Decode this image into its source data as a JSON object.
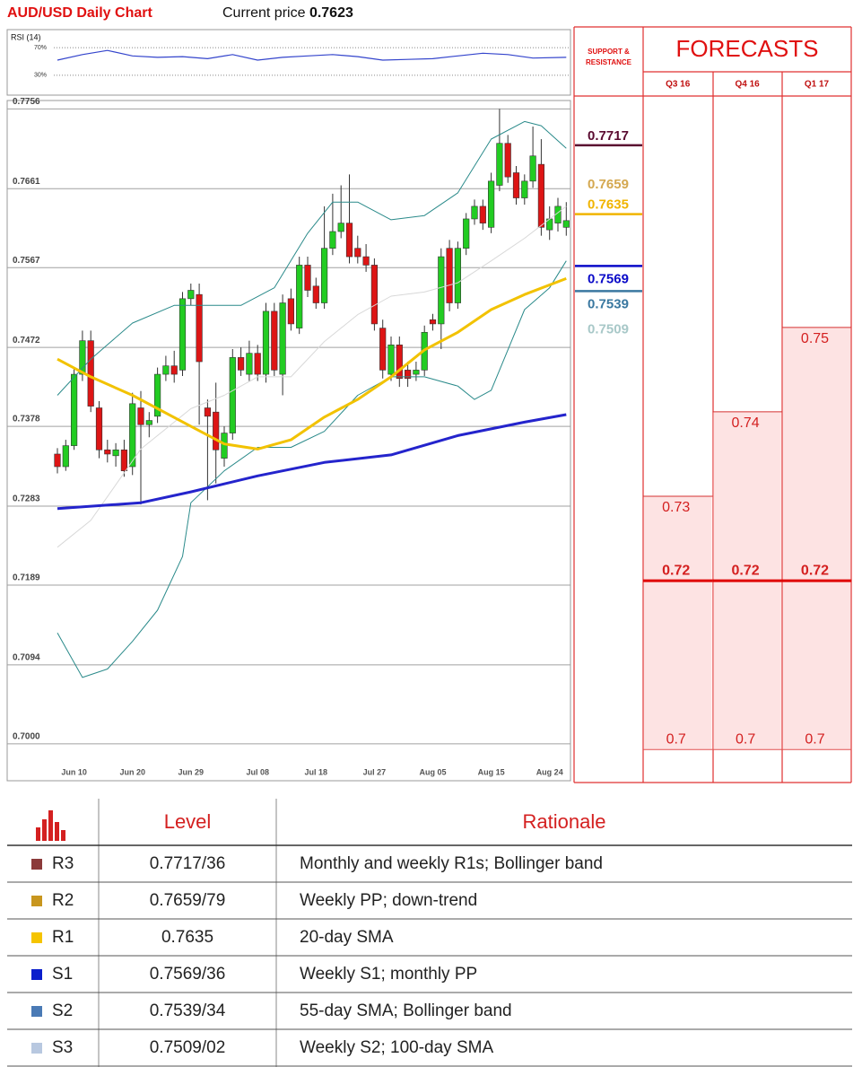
{
  "header": {
    "title": "AUD/USD Daily Chart",
    "price_label": "Current price",
    "price": 0.7623
  },
  "chart_data": [
    {
      "type": "candlestick",
      "categories": [
        null,
        null,
        "Jun 10",
        null,
        null,
        null,
        null,
        null,
        null,
        "Jun 20",
        null,
        null,
        null,
        null,
        null,
        null,
        "Jun 29",
        null,
        null,
        null,
        null,
        null,
        null,
        null,
        "Jul 08",
        null,
        null,
        null,
        null,
        null,
        null,
        "Jul 18",
        null,
        null,
        null,
        null,
        null,
        null,
        "Jul 27",
        null,
        null,
        null,
        null,
        null,
        null,
        "Aug 05",
        null,
        null,
        null,
        null,
        null,
        null,
        "Aug 15",
        null,
        null,
        null,
        null,
        null,
        null,
        "Aug 24",
        null,
        null
      ],
      "open": [
        0.7345,
        0.733,
        0.7355,
        0.744,
        0.748,
        0.74,
        0.735,
        0.7343,
        0.735,
        0.733,
        0.74,
        0.738,
        0.739,
        0.744,
        0.745,
        0.7445,
        0.753,
        0.7535,
        0.74,
        0.7395,
        0.734,
        0.737,
        0.746,
        0.744,
        0.7465,
        0.744,
        0.7515,
        0.744,
        0.753,
        0.7495,
        0.757,
        0.7545,
        0.7525,
        0.759,
        0.761,
        0.762,
        0.759,
        0.758,
        0.757,
        0.7495,
        0.744,
        0.7475,
        0.7445,
        0.744,
        0.7445,
        0.7505,
        0.75,
        0.759,
        0.7525,
        0.759,
        0.7625,
        0.764,
        0.7615,
        0.7665,
        0.7715,
        0.768,
        0.765,
        0.767,
        0.769,
        0.7612,
        0.762,
        0.7615
      ],
      "high": [
        0.7352,
        0.7362,
        0.7448,
        0.7492,
        0.7492,
        0.7408,
        0.7362,
        0.7358,
        0.7362,
        0.7418,
        0.742,
        0.7395,
        0.7448,
        0.7462,
        0.7468,
        0.7538,
        0.7548,
        0.7548,
        0.741,
        0.743,
        0.7378,
        0.747,
        0.7472,
        0.748,
        0.7475,
        0.7525,
        0.7525,
        0.7535,
        0.7542,
        0.758,
        0.758,
        0.7555,
        0.764,
        0.7655,
        0.7665,
        0.7678,
        0.7605,
        0.7595,
        0.7578,
        0.7505,
        0.7485,
        0.7485,
        0.7455,
        0.7455,
        0.7498,
        0.7512,
        0.759,
        0.76,
        0.7598,
        0.7632,
        0.7648,
        0.7648,
        0.768,
        0.7756,
        0.7725,
        0.7688,
        0.7678,
        0.7735,
        0.772,
        0.764,
        0.765,
        0.7645
      ],
      "low": [
        0.7322,
        0.7325,
        0.735,
        0.7432,
        0.7395,
        0.734,
        0.7335,
        0.733,
        0.7318,
        0.732,
        0.7285,
        0.7365,
        0.7382,
        0.7432,
        0.743,
        0.7438,
        0.7522,
        0.738,
        0.729,
        0.731,
        0.733,
        0.7362,
        0.7438,
        0.7432,
        0.7432,
        0.743,
        0.7438,
        0.7415,
        0.7492,
        0.7488,
        0.7532,
        0.7518,
        0.7518,
        0.7582,
        0.7602,
        0.7572,
        0.7572,
        0.7562,
        0.7492,
        0.7435,
        0.7432,
        0.7425,
        0.7425,
        0.7432,
        0.7438,
        0.7492,
        0.747,
        0.7515,
        0.7518,
        0.7582,
        0.7618,
        0.7612,
        0.7608,
        0.7658,
        0.7668,
        0.7642,
        0.7642,
        0.7662,
        0.7605,
        0.76,
        0.761,
        0.7605
      ],
      "close": [
        0.733,
        0.7355,
        0.744,
        0.748,
        0.7402,
        0.735,
        0.7345,
        0.735,
        0.7325,
        0.7405,
        0.738,
        0.7385,
        0.744,
        0.745,
        0.744,
        0.753,
        0.754,
        0.7455,
        0.739,
        0.735,
        0.737,
        0.746,
        0.7445,
        0.7465,
        0.744,
        0.7515,
        0.7445,
        0.7525,
        0.75,
        0.757,
        0.754,
        0.7525,
        0.759,
        0.761,
        0.762,
        0.758,
        0.758,
        0.757,
        0.75,
        0.7445,
        0.7475,
        0.7435,
        0.7435,
        0.7445,
        0.749,
        0.75,
        0.758,
        0.7525,
        0.759,
        0.7625,
        0.764,
        0.762,
        0.767,
        0.7715,
        0.7675,
        0.765,
        0.767,
        0.77,
        0.7615,
        0.7625,
        0.764,
        0.7623
      ],
      "up_color": "#22cc22",
      "down_color": "#dd1515",
      "lines": [
        {
          "color": "#d8d8d8",
          "width": 1,
          "x": [
            0,
            4,
            10,
            16,
            20,
            24,
            28,
            32,
            36,
            40,
            44,
            48,
            52,
            56,
            61
          ],
          "values": [
            0.7234,
            0.7266,
            0.7351,
            0.7399,
            0.7415,
            0.7437,
            0.7437,
            0.7479,
            0.7511,
            0.7533,
            0.7538,
            0.7549,
            0.7575,
            0.7602,
            0.764
          ]
        },
        {
          "color": "#2a8a8a",
          "width": 1,
          "x": [
            0,
            4,
            9,
            14,
            18,
            22,
            26,
            30,
            33,
            36,
            40,
            44,
            48,
            52,
            56,
            58,
            61
          ],
          "values": [
            0.7415,
            0.7458,
            0.7501,
            0.7522,
            0.7522,
            0.7522,
            0.7543,
            0.7608,
            0.7645,
            0.7645,
            0.7624,
            0.7629,
            0.7656,
            0.772,
            0.7741,
            0.7736,
            0.7709
          ]
        },
        {
          "color": "#2a8a8a",
          "width": 1,
          "x": [
            0,
            3,
            6,
            9,
            12,
            15,
            16,
            20,
            24,
            28,
            32,
            36,
            40,
            44,
            48,
            50,
            52,
            56,
            59,
            61
          ],
          "values": [
            0.7132,
            0.7079,
            0.7089,
            0.7122,
            0.7159,
            0.7223,
            0.7287,
            0.7325,
            0.7353,
            0.7353,
            0.7372,
            0.7415,
            0.7437,
            0.7437,
            0.7426,
            0.741,
            0.7421,
            0.7517,
            0.7543,
            0.7575
          ]
        },
        {
          "color": "#2424cc",
          "width": 3,
          "x": [
            0,
            10,
            16,
            24,
            32,
            40,
            48,
            56,
            61
          ],
          "values": [
            0.728,
            0.7287,
            0.73,
            0.7319,
            0.7335,
            0.7344,
            0.7367,
            0.7383,
            0.7392
          ]
        },
        {
          "color": "#f2c200",
          "width": 3,
          "x": [
            0,
            4,
            9,
            16,
            20,
            24,
            28,
            32,
            36,
            40,
            44,
            48,
            52,
            56,
            61
          ],
          "values": [
            0.7458,
            0.7437,
            0.7415,
            0.7378,
            0.7357,
            0.7351,
            0.7362,
            0.7389,
            0.741,
            0.7437,
            0.7469,
            0.749,
            0.7517,
            0.7535,
            0.7554
          ]
        }
      ],
      "ylim": [
        0.6956,
        0.7766
      ],
      "yticks": [
        {
          "value": 0.7,
          "label": "0.7000"
        },
        0.7094,
        0.7189,
        0.7283,
        0.7378,
        0.7472,
        0.7567,
        0.7661,
        0.7756
      ],
      "grid": true,
      "levels_title": "SUPPORT & RESISTANCE",
      "levels": [
        {
          "value": 0.7717,
          "color": "#5a0b30",
          "line": true
        },
        {
          "value": 0.7659,
          "color": "#d4a850",
          "line": false
        },
        {
          "value": 0.7635,
          "color": "#f0b400",
          "line": true
        },
        {
          "value": 0.7569,
          "color": "#0a0ac8",
          "line": true
        },
        {
          "value": 0.7539,
          "color": "#3a78a0",
          "line": true
        },
        {
          "value": 0.7509,
          "color": "#a8c8c8",
          "line": false
        }
      ]
    },
    {
      "type": "line",
      "title": "RSI (14)",
      "x": [
        0,
        3,
        6,
        9,
        12,
        15,
        18,
        21,
        24,
        27,
        30,
        33,
        36,
        39,
        42,
        45,
        48,
        51,
        54,
        57,
        61
      ],
      "values": [
        52,
        60,
        66,
        58,
        56,
        57,
        54,
        60,
        52,
        56,
        58,
        60,
        57,
        52,
        53,
        54,
        58,
        62,
        60,
        55,
        56
      ],
      "color": "#3344cc",
      "ylim": [
        0,
        100
      ],
      "yticks": [
        {
          "value": 70,
          "label": "70%"
        },
        {
          "value": 30,
          "label": "30%"
        }
      ]
    },
    {
      "type": "bar",
      "title": "FORECASTS",
      "categories": [
        "Q3 16",
        "Q4 16",
        "Q1 17"
      ],
      "series": [
        {
          "color": "#fde3e3",
          "values": [
            0.73,
            0.74,
            0.75
          ]
        },
        {
          "color": "#e00000",
          "values": [
            0.72,
            0.72,
            0.72
          ]
        },
        {
          "color": "#e05050",
          "values": [
            0.7,
            0.7,
            0.7
          ]
        }
      ],
      "ylim": [
        0.6961,
        0.7774
      ]
    }
  ],
  "table": {
    "columns": [
      "Level",
      "Rationale"
    ],
    "rows": [
      {
        "label": "R3",
        "color": "#8b3a3a",
        "level": "0.7717/36",
        "rationale": "Monthly and weekly R1s; Bollinger band"
      },
      {
        "label": "R2",
        "color": "#c8961e",
        "level": "0.7659/79",
        "rationale": "Weekly PP; down-trend"
      },
      {
        "label": "R1",
        "color": "#f5c400",
        "level": "0.7635",
        "rationale": "20-day SMA"
      },
      {
        "label": "S1",
        "color": "#0a1ecc",
        "level": "0.7569/36",
        "rationale": "Weekly S1; monthly PP"
      },
      {
        "label": "S2",
        "color": "#4a7ab5",
        "level": "0.7539/34",
        "rationale": "55-day SMA; Bollinger band"
      },
      {
        "label": "S3",
        "color": "#b8c8e0",
        "level": "0.7509/02",
        "rationale": "Weekly S2; 100-day SMA"
      }
    ]
  }
}
